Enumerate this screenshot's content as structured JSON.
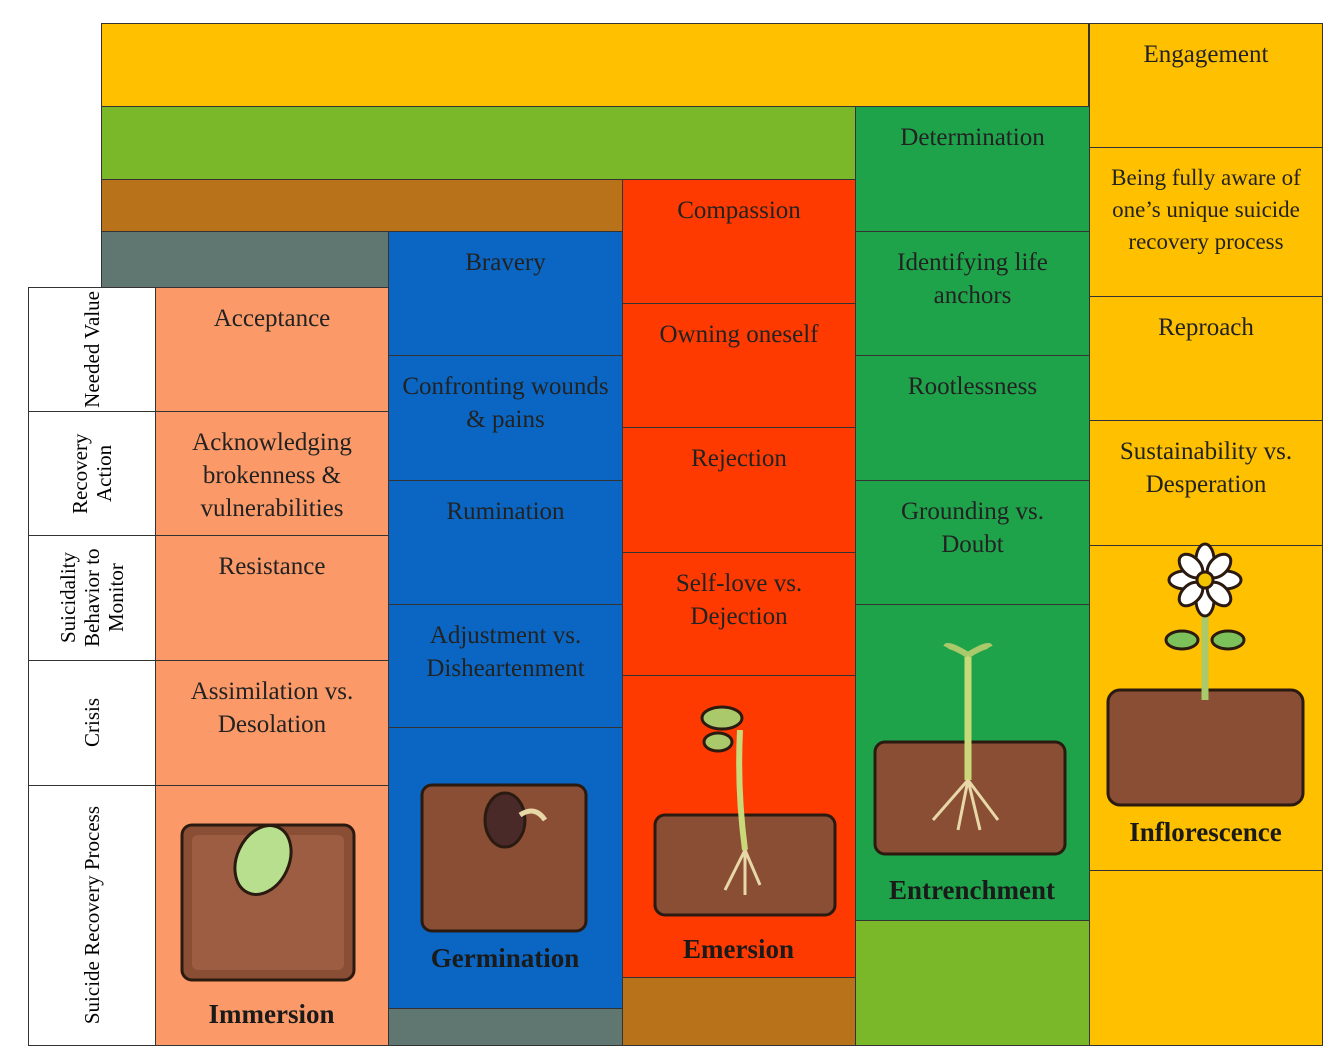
{
  "row_labels": [
    "Needed Value",
    "Recovery Action",
    "Suicidality Behavior to Monitor",
    "Crisis",
    "Suicide Recovery Process"
  ],
  "stages": [
    {
      "name": "Immersion",
      "cells": [
        "Acceptance",
        "Acknowledging brokenness & vulnerabilities",
        "Resistance",
        "Assimilation vs. Desolation"
      ]
    },
    {
      "name": "Germination",
      "cells": [
        "Bravery",
        "Confronting wounds & pains",
        "Rumination",
        "Adjustment vs. Disheartenment"
      ]
    },
    {
      "name": "Emersion",
      "cells": [
        "Compassion",
        "Owning oneself",
        "Rejection",
        "Self-love vs. Dejection"
      ]
    },
    {
      "name": "Entrenchment",
      "cells": [
        "Determination",
        "Identifying life anchors",
        "Rootlessness",
        "Grounding vs. Doubt"
      ]
    },
    {
      "name": "Inflorescence",
      "cells": [
        "Engagement",
        "Being fully aware of one’s unique suicide recovery process",
        "Reproach",
        "Sustainability vs. Desperation"
      ]
    }
  ]
}
